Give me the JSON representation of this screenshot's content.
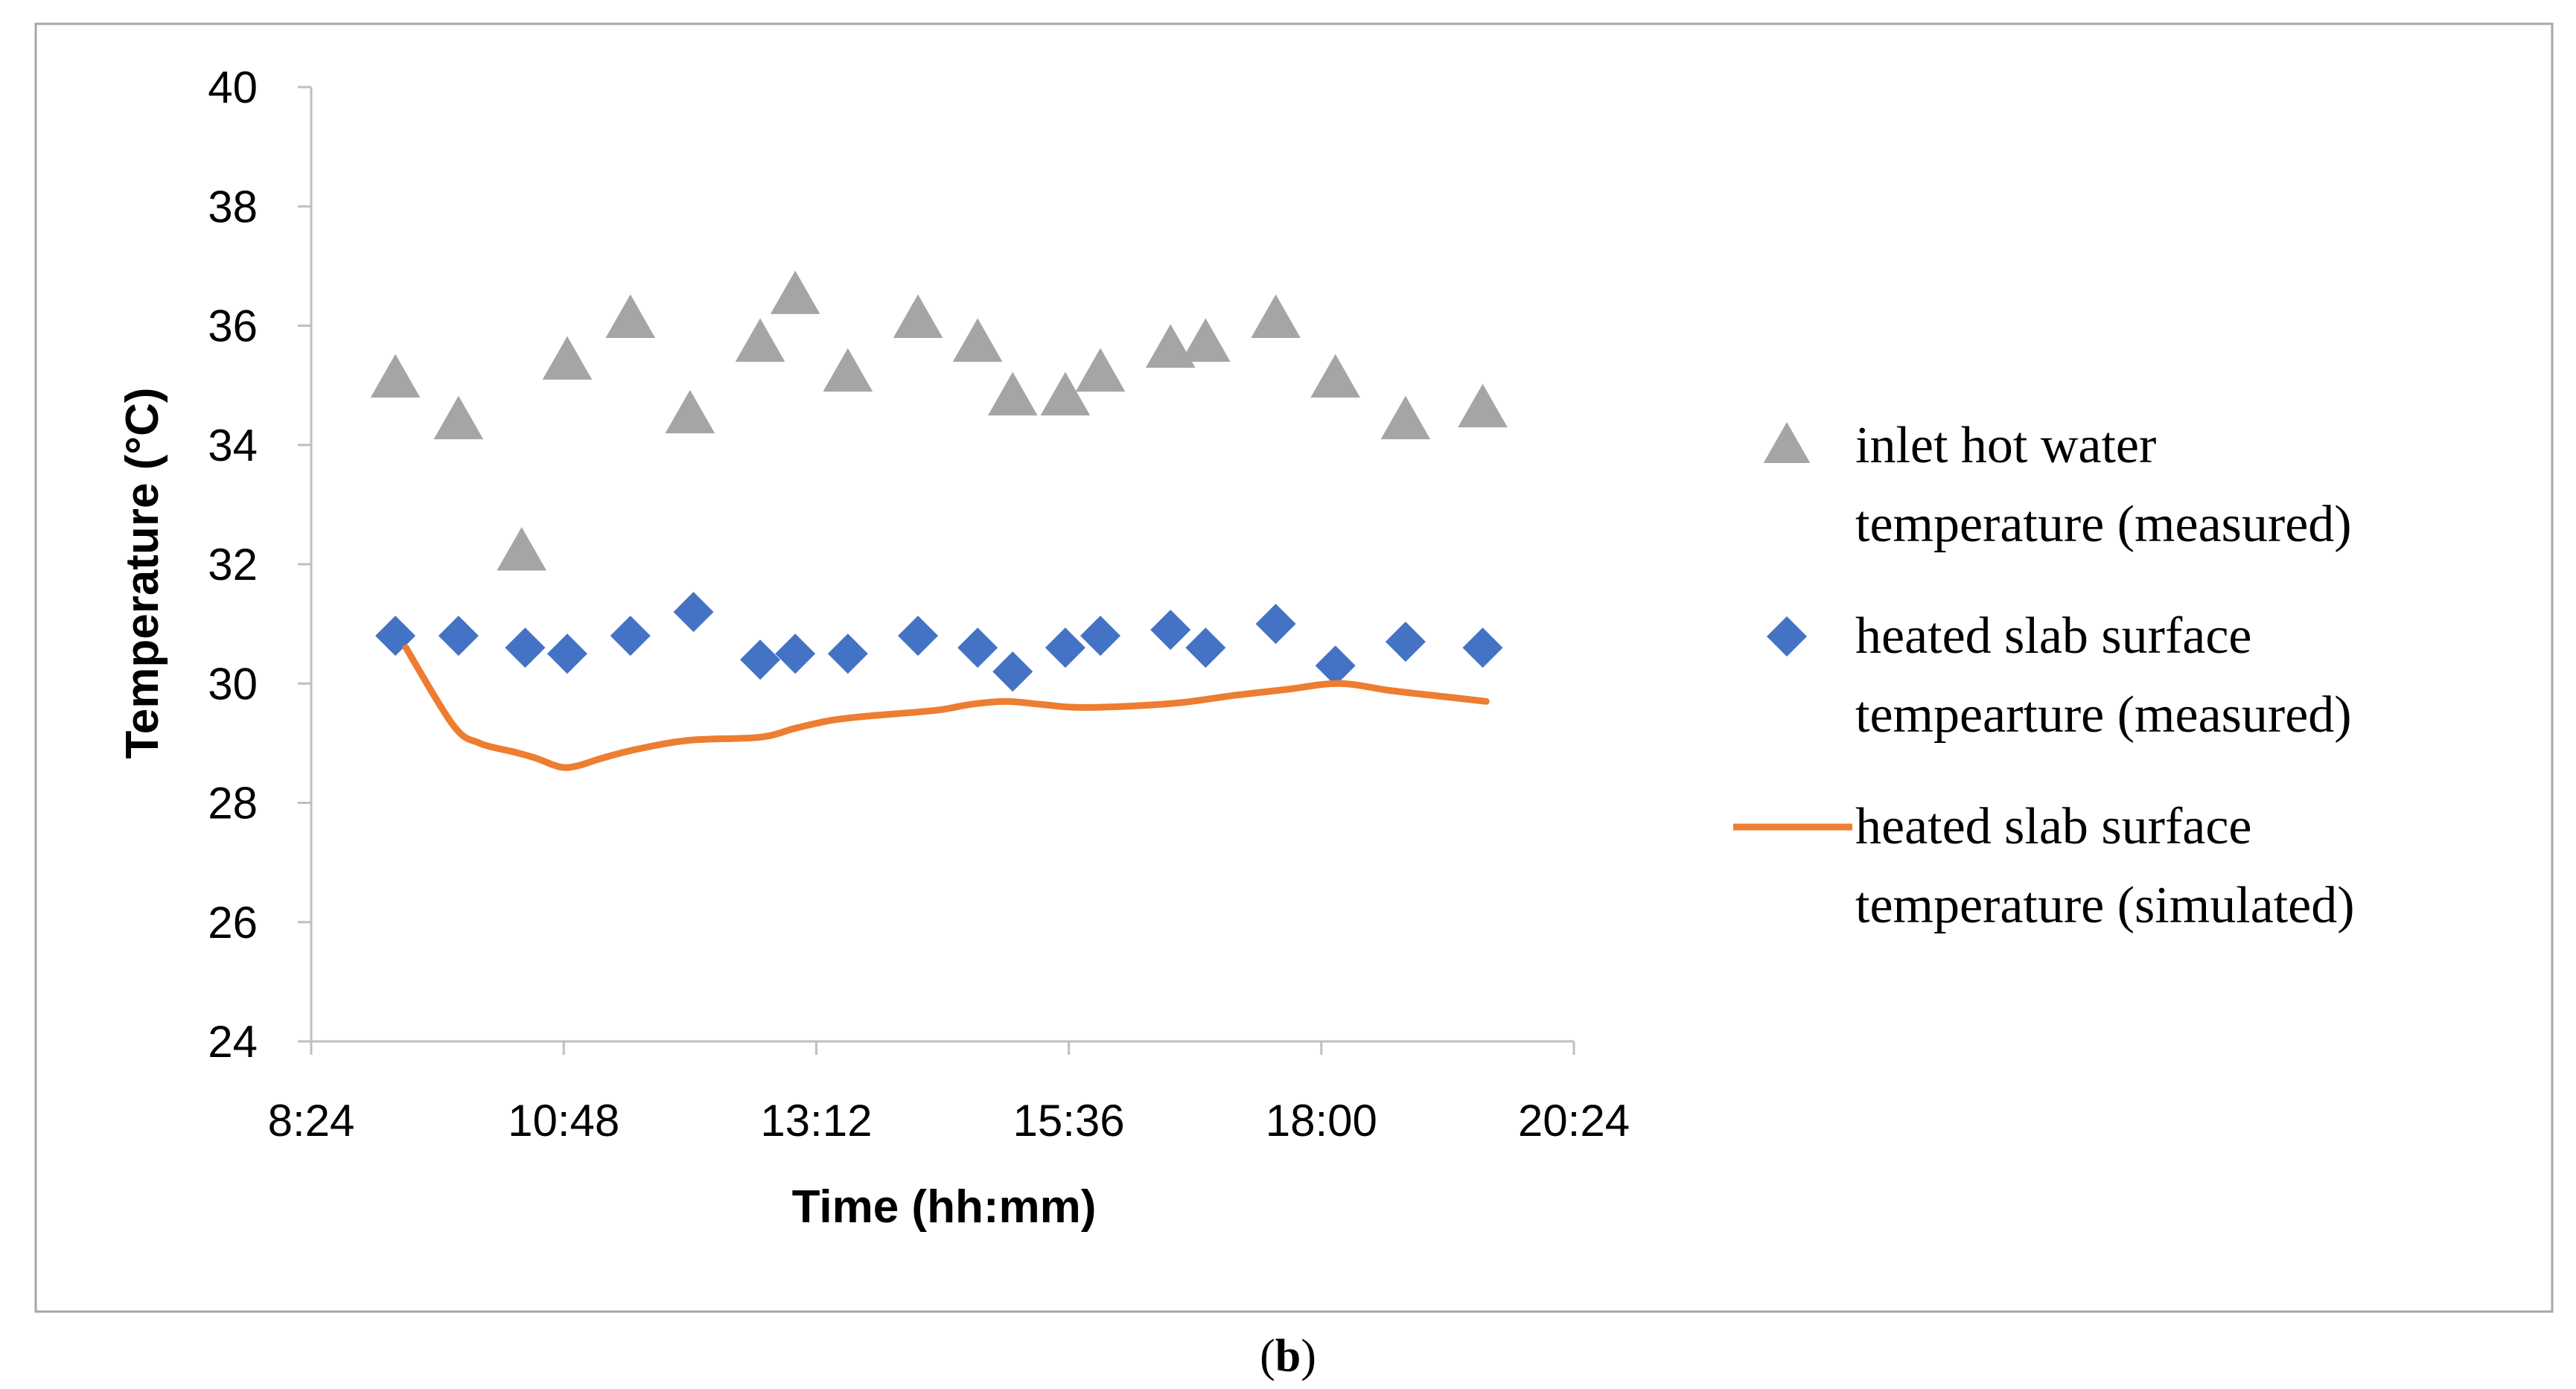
{
  "caption": {
    "open": "(",
    "letter": "b",
    "close": ")"
  },
  "chart_data": {
    "type": "scatter",
    "xlabel": "Time (hh:mm)",
    "ylabel": "Temperature (°C)",
    "xlim": [
      "8:24",
      "20:24"
    ],
    "ylim": [
      24,
      40
    ],
    "x_ticks": [
      "8:24",
      "10:48",
      "13:12",
      "15:36",
      "18:00",
      "20:24"
    ],
    "y_ticks": [
      "24",
      "26",
      "28",
      "30",
      "32",
      "34",
      "36",
      "38",
      "40"
    ],
    "grid": false,
    "legend_position": "right",
    "series": [
      {
        "name": "inlet hot water temperature (measured)",
        "legend_lines": [
          "inlet hot water",
          "temperature (measured)"
        ],
        "marker": "triangle",
        "color": "#a5a5a5",
        "x": [
          "9:12",
          "9:48",
          "10:24",
          "10:50",
          "11:26",
          "12:00",
          "12:40",
          "13:00",
          "13:30",
          "14:10",
          "14:44",
          "15:04",
          "15:34",
          "15:54",
          "16:34",
          "16:54",
          "17:34",
          "18:08",
          "18:48",
          "19:32"
        ],
        "y": [
          35.1,
          34.4,
          32.2,
          35.4,
          36.1,
          34.5,
          35.7,
          36.5,
          35.2,
          36.1,
          35.7,
          34.8,
          34.8,
          35.2,
          35.6,
          35.7,
          36.1,
          35.1,
          34.4,
          34.6
        ]
      },
      {
        "name": "heated slab surface tempearture (measured)",
        "legend_lines": [
          "heated slab surface",
          "tempearture (measured)"
        ],
        "marker": "diamond",
        "color": "#4472c4",
        "x": [
          "9:12",
          "9:48",
          "10:26",
          "10:50",
          "11:26",
          "12:02",
          "12:40",
          "13:00",
          "13:30",
          "14:10",
          "14:44",
          "15:04",
          "15:34",
          "15:54",
          "16:34",
          "16:54",
          "17:34",
          "18:08",
          "18:48",
          "19:32"
        ],
        "y": [
          30.8,
          30.8,
          30.6,
          30.5,
          30.8,
          31.2,
          30.4,
          30.5,
          30.5,
          30.8,
          30.6,
          30.2,
          30.6,
          30.8,
          30.9,
          30.6,
          31.0,
          30.3,
          30.7,
          30.6
        ]
      },
      {
        "name": "heated slab surface temperature (simulated)",
        "legend_lines": [
          "heated slab surface",
          "temperature (simulated)"
        ],
        "marker": "line",
        "color": "#ed7d31",
        "x": [
          "9:18",
          "9:45",
          "10:00",
          "10:20",
          "10:32",
          "10:46",
          "10:56",
          "11:10",
          "11:30",
          "12:00",
          "12:40",
          "13:00",
          "13:20",
          "13:40",
          "14:20",
          "14:40",
          "15:00",
          "15:20",
          "15:40",
          "16:10",
          "16:40",
          "17:10",
          "17:40",
          "18:10",
          "18:40",
          "19:10",
          "19:34"
        ],
        "y": [
          30.6,
          29.3,
          29.0,
          28.85,
          28.75,
          28.6,
          28.62,
          28.75,
          28.9,
          29.05,
          29.1,
          29.25,
          29.38,
          29.45,
          29.55,
          29.65,
          29.7,
          29.65,
          29.6,
          29.62,
          29.68,
          29.8,
          29.9,
          30.0,
          29.88,
          29.78,
          29.7
        ]
      }
    ]
  }
}
